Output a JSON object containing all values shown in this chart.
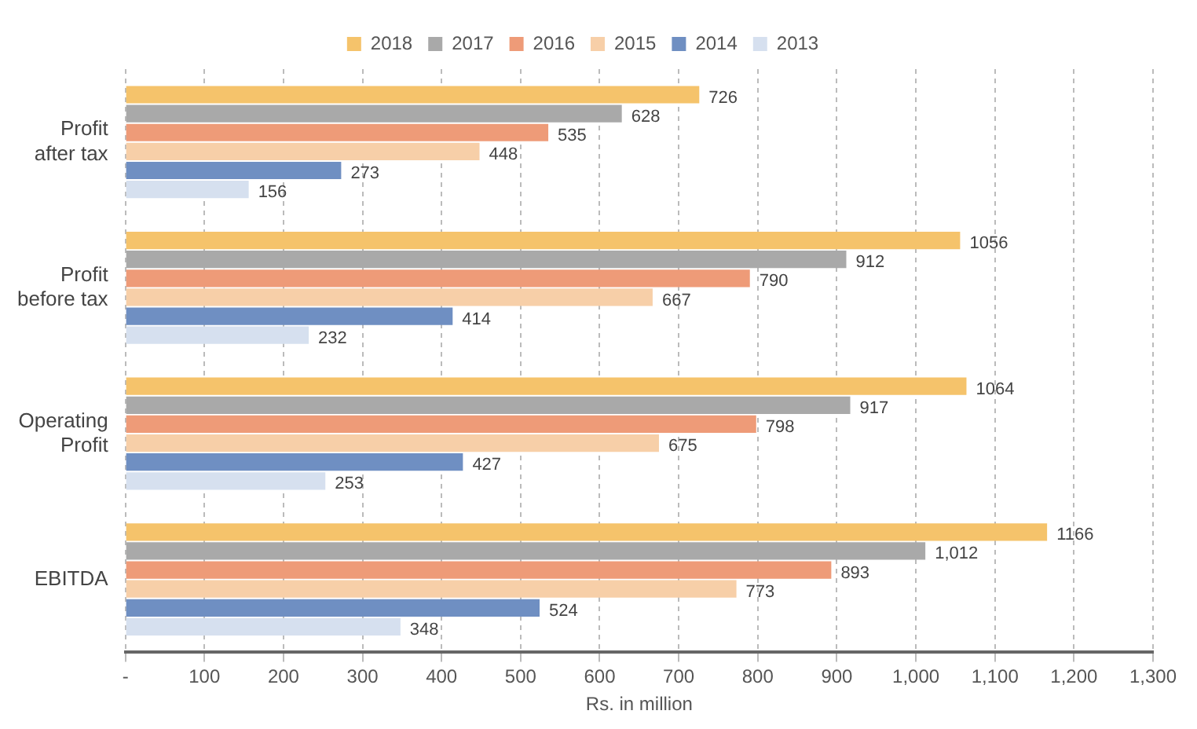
{
  "chart_data": {
    "type": "bar",
    "orientation": "horizontal",
    "xlabel": "Rs. in million",
    "categories": [
      "Profit after tax",
      "Profit before tax",
      "Operating Profit",
      "EBITDA"
    ],
    "series": [
      {
        "name": "2018",
        "color": "#f5c36b",
        "values": [
          726,
          1056,
          1064,
          1166
        ],
        "value_labels": [
          "726",
          "1056",
          "1064",
          "1166"
        ]
      },
      {
        "name": "2017",
        "color": "#a9a9a9",
        "values": [
          628,
          912,
          917,
          1012
        ],
        "value_labels": [
          "628",
          "912",
          "917",
          "1,012"
        ]
      },
      {
        "name": "2016",
        "color": "#ee9b78",
        "values": [
          535,
          790,
          798,
          893
        ],
        "value_labels": [
          "535",
          "790",
          "798",
          "893"
        ]
      },
      {
        "name": "2015",
        "color": "#f7cfa8",
        "values": [
          448,
          667,
          675,
          773
        ],
        "value_labels": [
          "448",
          "667",
          "675",
          "773"
        ]
      },
      {
        "name": "2014",
        "color": "#6f8fc2",
        "values": [
          273,
          414,
          427,
          524
        ],
        "value_labels": [
          "273",
          "414",
          "427",
          "524"
        ]
      },
      {
        "name": "2013",
        "color": "#d6e0ef",
        "values": [
          156,
          232,
          253,
          348
        ],
        "value_labels": [
          "156",
          "232",
          "253",
          "348"
        ]
      }
    ],
    "xlim": [
      0,
      1300
    ],
    "xticks": [
      {
        "value": 0,
        "label": "-"
      },
      100,
      200,
      300,
      400,
      500,
      600,
      700,
      800,
      900,
      {
        "value": 1000,
        "label": "1,000"
      },
      {
        "value": 1100,
        "label": "1,100"
      },
      {
        "value": 1200,
        "label": "1,200"
      },
      {
        "value": 1300,
        "label": "1,300"
      }
    ],
    "grid": "x",
    "legend": "top"
  }
}
